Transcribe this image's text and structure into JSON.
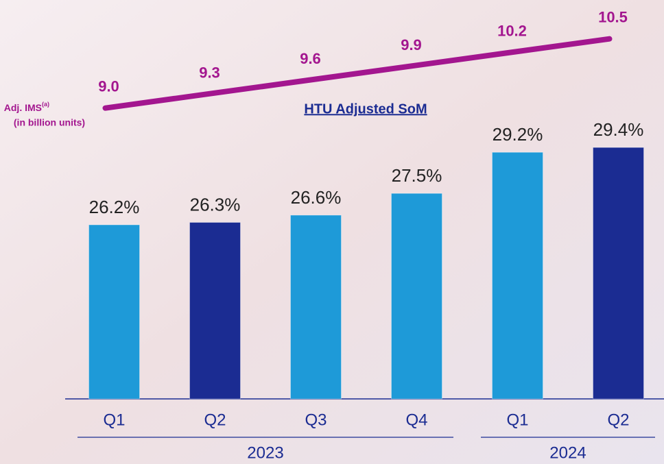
{
  "chart_data": {
    "type": "bar",
    "title": "HTU Adjusted SoM",
    "groups": [
      {
        "name": "2023",
        "categories": [
          "Q1",
          "Q2",
          "Q3",
          "Q4"
        ]
      },
      {
        "name": "2024",
        "categories": [
          "Q1",
          "Q2"
        ]
      }
    ],
    "ylim": [
      19,
      30
    ],
    "y2lim": [
      8,
      11
    ],
    "series": [
      {
        "type": "bar",
        "colors": [
          "#1e9ad8",
          "#1b2c92",
          "#1e9ad8",
          "#1e9ad8",
          "#1e9ad8",
          "#1b2c92"
        ],
        "values": [
          26.2,
          26.3,
          26.6,
          27.5,
          29.2,
          29.4
        ],
        "value_labels": [
          "26.2%",
          "26.3%",
          "26.6%",
          "27.5%",
          "29.2%",
          "29.4%"
        ]
      },
      {
        "type": "line",
        "axis": "y2",
        "color": "#a3168f",
        "name": "Adj. IMS",
        "name_superscript": "(a)",
        "unit": "(in billion units)",
        "values": [
          9.0,
          9.3,
          9.6,
          9.9,
          10.2,
          10.5
        ],
        "value_labels": [
          "9.0",
          "9.3",
          "9.6",
          "9.9",
          "10.2",
          "10.5"
        ]
      }
    ]
  }
}
